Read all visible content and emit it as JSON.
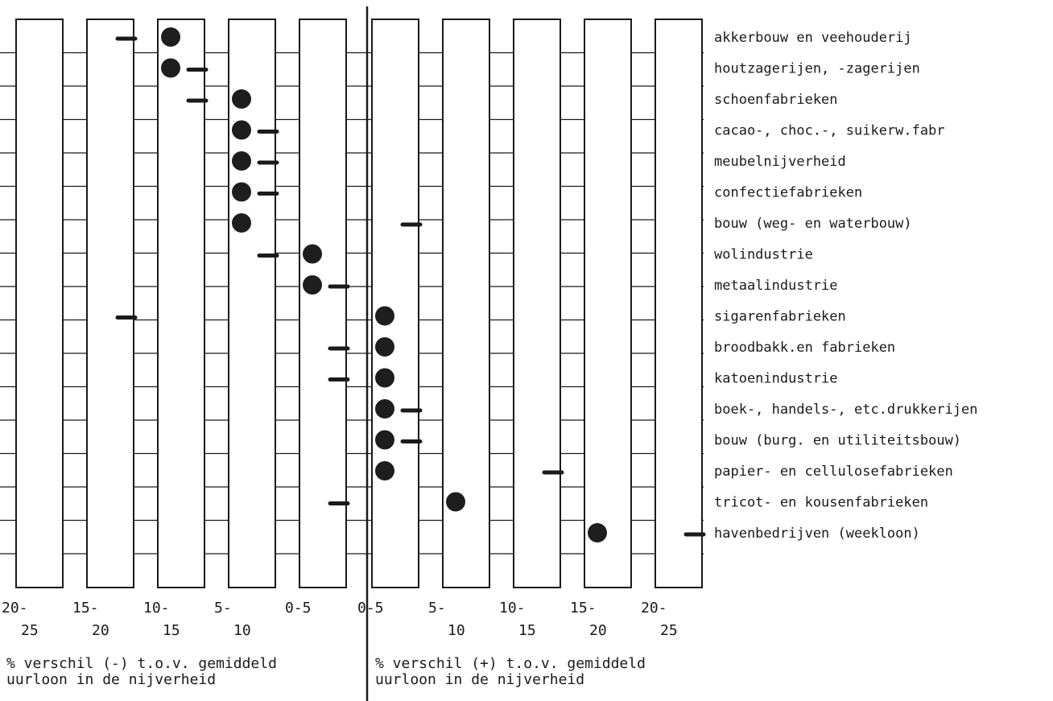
{
  "chart_data": {
    "type": "scatter",
    "categories": [
      "akkerbouw en veehouderij",
      "houtzagerijen, -zagerijen",
      "schoenfabrieken",
      "cacao-, choc.-, suikerw.fabr",
      "meubelnijverheid",
      "confectiefabrieken",
      "bouw (weg- en waterbouw)",
      "wolindustrie",
      "metaalindustrie",
      "sigarenfabrieken",
      "broodbakk.en fabrieken",
      "katoenindustrie",
      "boek-, handels-, etc.drukkerijen",
      "bouw (burg. en utiliteitsbouw)",
      "papier- en cellulosefabrieken",
      "tricot- en kousenfabrieken",
      "havenbedrijven (weekloon)"
    ],
    "columns": [
      {
        "label": "20-\n25",
        "sign": "-"
      },
      {
        "label": "15-\n20",
        "sign": "-"
      },
      {
        "label": "10-\n15",
        "sign": "-"
      },
      {
        "label": "5-\n10",
        "sign": "-"
      },
      {
        "label": "0-5",
        "sign": "-"
      },
      {
        "label": "0-5",
        "sign": "+"
      },
      {
        "label": "5-\n10",
        "sign": "+"
      },
      {
        "label": "10-\n15",
        "sign": "+"
      },
      {
        "label": "15-\n20",
        "sign": "+"
      },
      {
        "label": "20-\n25",
        "sign": "+"
      }
    ],
    "series": [
      {
        "marker": "dot",
        "col": [
          2,
          2,
          3,
          3,
          3,
          3,
          3,
          4,
          4,
          5,
          5,
          5,
          5,
          5,
          5,
          6,
          8
        ]
      },
      {
        "marker": "dash",
        "col": [
          1,
          2,
          2,
          3,
          3,
          3,
          5,
          3,
          4,
          1,
          4,
          4,
          5,
          5,
          7,
          4,
          9
        ]
      }
    ],
    "xlabel_left": "% verschil (-) t.o.v. gemiddeld\nuurloon in de nijverheid",
    "xlabel_right": "% verschil (+) t.o.v. gemiddeld\nuurloon in de nijverheid"
  }
}
